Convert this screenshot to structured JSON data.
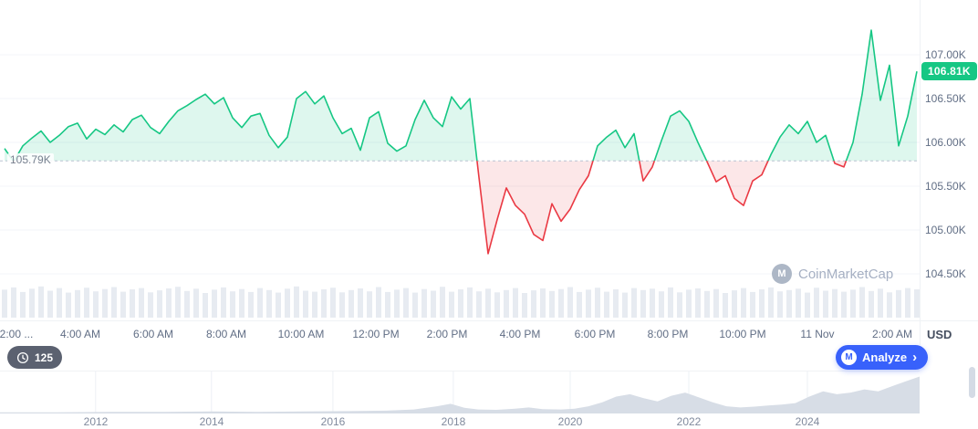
{
  "colors": {
    "green": "#16c784",
    "green_fill": "rgba(22,199,132,0.14)",
    "red": "#ea3943",
    "red_fill": "rgba(234,57,67,0.12)",
    "blue": "#3861fb",
    "axis_text": "#616e85",
    "grid": "#f3f5f8",
    "volume_bar": "#e7ebf1",
    "timeline_fill": "#d7dde6",
    "badge_green": "#16c784"
  },
  "labels": {
    "baseline": "105.79K",
    "current_price": "106.81K",
    "currency": "USD",
    "watermark": "CoinMarketCap",
    "watermark_icon": "M",
    "count": "125"
  },
  "analyze": {
    "icon": "M",
    "label": "Analyze",
    "chevron": "›"
  },
  "chart_data": [
    {
      "type": "area",
      "title": "Bitcoin price, 24h baseline chart (green above 105.79K, red below)",
      "unit": "thousand USD",
      "baseline": 105.79,
      "current": 106.81,
      "ylim": [
        104.5,
        107.4
      ],
      "grid": true,
      "y_ticks": [
        {
          "label": "107.00K",
          "value": 107.0
        },
        {
          "label": "106.50K",
          "value": 106.5
        },
        {
          "label": "106.00K",
          "value": 106.0
        },
        {
          "label": "105.50K",
          "value": 105.5
        },
        {
          "label": "105.00K",
          "value": 105.0
        },
        {
          "label": "104.50K",
          "value": 104.5
        }
      ],
      "x_ticks": [
        {
          "label": "2:00 ...",
          "f": 0.018
        },
        {
          "label": "4:00 AM",
          "f": 0.087
        },
        {
          "label": "6:00 AM",
          "f": 0.167
        },
        {
          "label": "8:00 AM",
          "f": 0.246
        },
        {
          "label": "10:00 AM",
          "f": 0.327
        },
        {
          "label": "12:00 PM",
          "f": 0.409
        },
        {
          "label": "2:00 PM",
          "f": 0.486
        },
        {
          "label": "4:00 PM",
          "f": 0.565
        },
        {
          "label": "6:00 PM",
          "f": 0.647
        },
        {
          "label": "8:00 PM",
          "f": 0.726
        },
        {
          "label": "10:00 PM",
          "f": 0.808
        },
        {
          "label": "11 Nov",
          "f": 0.889
        },
        {
          "label": "2:00 AM",
          "f": 0.97
        }
      ],
      "values": [
        105.93,
        105.78,
        105.96,
        106.05,
        106.13,
        106.0,
        106.08,
        106.18,
        106.22,
        106.04,
        106.15,
        106.09,
        106.2,
        106.12,
        106.26,
        106.31,
        106.17,
        106.1,
        106.24,
        106.36,
        106.42,
        106.49,
        106.55,
        106.44,
        106.51,
        106.28,
        106.17,
        106.3,
        106.33,
        106.08,
        105.94,
        106.06,
        106.5,
        106.58,
        106.44,
        106.53,
        106.28,
        106.1,
        106.16,
        105.91,
        106.28,
        106.35,
        105.99,
        105.9,
        105.96,
        106.26,
        106.48,
        106.28,
        106.18,
        106.52,
        106.38,
        106.5,
        105.6,
        104.73,
        105.12,
        105.48,
        105.28,
        105.18,
        104.95,
        104.88,
        105.3,
        105.1,
        105.24,
        105.46,
        105.62,
        105.96,
        106.06,
        106.14,
        105.94,
        106.1,
        105.56,
        105.72,
        106.02,
        106.3,
        106.36,
        106.24,
        106.0,
        105.78,
        105.55,
        105.62,
        105.36,
        105.28,
        105.56,
        105.63,
        105.86,
        106.06,
        106.2,
        106.1,
        106.24,
        106.0,
        106.08,
        105.76,
        105.72,
        106.0,
        106.55,
        107.28,
        106.48,
        106.88,
        105.96,
        106.3,
        106.81
      ],
      "volume": [
        0.85,
        0.92,
        0.78,
        0.88,
        0.95,
        0.82,
        0.9,
        0.76,
        0.84,
        0.91,
        0.8,
        0.87,
        0.93,
        0.79,
        0.86,
        0.9,
        0.77,
        0.83,
        0.89,
        0.94,
        0.81,
        0.88,
        0.75,
        0.85,
        0.92,
        0.8,
        0.87,
        0.78,
        0.9,
        0.84,
        0.76,
        0.88,
        0.95,
        0.82,
        0.79,
        0.86,
        0.91,
        0.77,
        0.84,
        0.89,
        0.8,
        0.93,
        0.78,
        0.85,
        0.9,
        0.76,
        0.87,
        0.82,
        0.94,
        0.79,
        0.86,
        0.92,
        0.8,
        0.88,
        0.77,
        0.84,
        0.9,
        0.75,
        0.83,
        0.89,
        0.81,
        0.87,
        0.93,
        0.78,
        0.85,
        0.91,
        0.79,
        0.86,
        0.76,
        0.9,
        0.84,
        0.88,
        0.8,
        0.92,
        0.77,
        0.85,
        0.89,
        0.81,
        0.87,
        0.75,
        0.83,
        0.9,
        0.78,
        0.86,
        0.92,
        0.8,
        0.84,
        0.88,
        0.76,
        0.91,
        0.82,
        0.87,
        0.79,
        0.85,
        0.93,
        0.81,
        0.88,
        0.77,
        0.84,
        0.9,
        0.86
      ]
    },
    {
      "type": "area",
      "title": "All-time price overview (range selector)",
      "x_ticks": [
        {
          "label": "2012",
          "f": 0.104
        },
        {
          "label": "2014",
          "f": 0.23
        },
        {
          "label": "2016",
          "f": 0.362
        },
        {
          "label": "2018",
          "f": 0.493
        },
        {
          "label": "2020",
          "f": 0.62
        },
        {
          "label": "2022",
          "f": 0.749
        },
        {
          "label": "2024",
          "f": 0.878
        }
      ],
      "points": [
        [
          0,
          0.03
        ],
        [
          0.06,
          0.03
        ],
        [
          0.12,
          0.04
        ],
        [
          0.18,
          0.04
        ],
        [
          0.23,
          0.05
        ],
        [
          0.28,
          0.04
        ],
        [
          0.33,
          0.05
        ],
        [
          0.38,
          0.06
        ],
        [
          0.42,
          0.07
        ],
        [
          0.45,
          0.1
        ],
        [
          0.475,
          0.18
        ],
        [
          0.49,
          0.24
        ],
        [
          0.505,
          0.14
        ],
        [
          0.52,
          0.1
        ],
        [
          0.54,
          0.09
        ],
        [
          0.56,
          0.12
        ],
        [
          0.575,
          0.15
        ],
        [
          0.59,
          0.11
        ],
        [
          0.61,
          0.1
        ],
        [
          0.625,
          0.12
        ],
        [
          0.64,
          0.18
        ],
        [
          0.655,
          0.28
        ],
        [
          0.67,
          0.42
        ],
        [
          0.685,
          0.48
        ],
        [
          0.7,
          0.38
        ],
        [
          0.715,
          0.3
        ],
        [
          0.73,
          0.44
        ],
        [
          0.745,
          0.52
        ],
        [
          0.76,
          0.4
        ],
        [
          0.775,
          0.28
        ],
        [
          0.79,
          0.18
        ],
        [
          0.805,
          0.15
        ],
        [
          0.82,
          0.17
        ],
        [
          0.835,
          0.2
        ],
        [
          0.85,
          0.22
        ],
        [
          0.865,
          0.26
        ],
        [
          0.88,
          0.42
        ],
        [
          0.895,
          0.55
        ],
        [
          0.91,
          0.48
        ],
        [
          0.925,
          0.52
        ],
        [
          0.94,
          0.6
        ],
        [
          0.955,
          0.55
        ],
        [
          0.97,
          0.68
        ],
        [
          0.985,
          0.8
        ],
        [
          1.0,
          0.92
        ]
      ]
    }
  ]
}
